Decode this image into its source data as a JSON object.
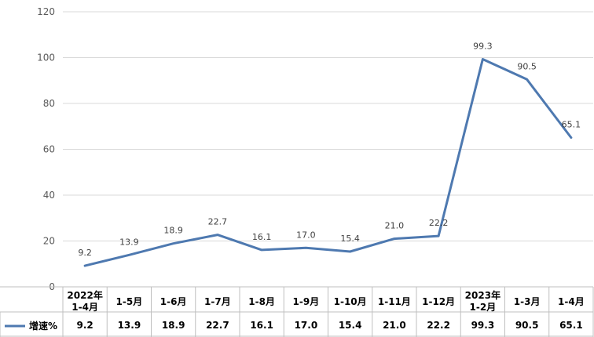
{
  "chart_data": {
    "type": "line",
    "title": "",
    "xlabel": "",
    "ylabel": "",
    "ylim": [
      0,
      120
    ],
    "yticks": [
      0,
      20,
      40,
      60,
      80,
      100,
      120
    ],
    "grid": true,
    "legend": "bottom-left, in data table",
    "line_color": "#4E79B0",
    "categories": [
      [
        "2022年",
        "1-4月"
      ],
      [
        "1-5月"
      ],
      [
        "1-6月"
      ],
      [
        "1-7月"
      ],
      [
        "1-8月"
      ],
      [
        "1-9月"
      ],
      [
        "1-10月"
      ],
      [
        "1-11月"
      ],
      [
        "1-12月"
      ],
      [
        "2023年",
        "1-2月"
      ],
      [
        "1-3月"
      ],
      [
        "1-4月"
      ]
    ],
    "series": [
      {
        "name": "增速%",
        "values": [
          9.2,
          13.9,
          18.9,
          22.7,
          16.1,
          17.0,
          15.4,
          21.0,
          22.2,
          99.3,
          90.5,
          65.1
        ],
        "labels": [
          "9.2",
          "13.9",
          "18.9",
          "22.7",
          "16.1",
          "17.0",
          "15.4",
          "21.0",
          "22.2",
          "99.3",
          "90.5",
          "65.1"
        ]
      }
    ]
  }
}
